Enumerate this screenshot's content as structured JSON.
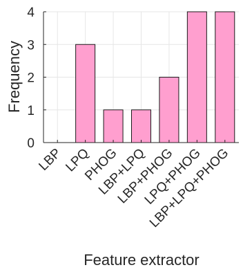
{
  "chart_data": {
    "type": "bar",
    "title": "",
    "xlabel": "Feature extractor",
    "ylabel": "Frequency",
    "categories": [
      "LBP",
      "LPQ",
      "PHOG",
      "LBP+LPQ",
      "LBP+PHOG",
      "LPQ+PHOG",
      "LBP+LPQ+PHOG"
    ],
    "values": [
      0,
      3,
      1,
      1,
      2,
      4,
      4
    ],
    "ylim": [
      0,
      4
    ],
    "yticks": [
      0,
      1,
      2,
      3,
      4
    ],
    "grid": true,
    "legend": "none",
    "colors": {
      "bar_fill": "#ff9fcf",
      "bar_edge": "#1a1a1a",
      "grid": "#e6e6e6",
      "axis": "#262626"
    }
  }
}
